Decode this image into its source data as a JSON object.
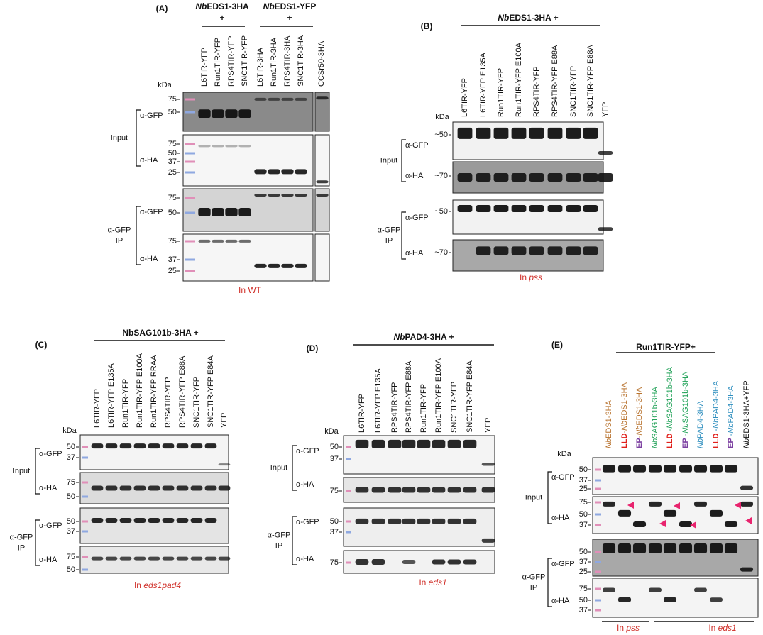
{
  "panels": [
    {
      "label": "(A)",
      "headers": [
        {
          "text": [
            {
              "text": "Nb",
              "italic": true
            },
            {
              "text": "EDS1-3HA"
            }
          ],
          "sub": "+"
        },
        {
          "text": [
            {
              "text": "Nb",
              "italic": true
            },
            {
              "text": "EDS1-YFP"
            }
          ],
          "sub": "+"
        }
      ],
      "lanes": [
        "L6TIR-YFP",
        "Run1TIR-YFP",
        "RPS4TIR-YFP",
        "SNC1TIR-YFP",
        "L6TIR-3HA",
        "Run1TIR-3HA",
        "RPS4TIR-3HA",
        "SNC1TIR-3HA",
        "CCSr50-3HA"
      ],
      "kda": "kDa",
      "blots": [
        {
          "antibody": "α-GFP",
          "markers": [
            "75",
            "50"
          ]
        },
        {
          "antibody": "α-HA",
          "markers": [
            "75",
            "50",
            "37",
            "25"
          ]
        },
        {
          "antibody": "α-GFP",
          "markers": [
            "75",
            "50"
          ]
        },
        {
          "antibody": "α-HA",
          "markers": [
            "75",
            "37",
            "25"
          ]
        }
      ],
      "groups": [
        {
          "lines": [
            "Input"
          ]
        },
        {
          "lines": [
            "α-GFP",
            "IP"
          ]
        }
      ],
      "footers": [
        [
          {
            "text": "In WT"
          }
        ]
      ]
    },
    {
      "label": "(B)",
      "headers": [
        {
          "text": [
            {
              "text": "Nb",
              "italic": true
            },
            {
              "text": "EDS1-3HA +"
            }
          ]
        }
      ],
      "lanes": [
        "L6TIR-YFP",
        "L6TIR-YFP E135A",
        "Run1TIR-YFP",
        "Run1TIR-YFP E100A",
        "RPS4TIR-YFP",
        "RPS4TIR-YFP E88A",
        "SNC1TIR-YFP",
        "SNC1TIR-YFP E88A",
        "YFP"
      ],
      "kda": "kDa",
      "blots": [
        {
          "antibody": "α-GFP",
          "markers": [
            "~50"
          ]
        },
        {
          "antibody": "α-HA",
          "markers": [
            "~70"
          ]
        },
        {
          "antibody": "α-GFP",
          "markers": [
            "~50"
          ]
        },
        {
          "antibody": "α-HA",
          "markers": [
            "~70"
          ]
        }
      ],
      "groups": [
        {
          "lines": [
            "Input"
          ]
        },
        {
          "lines": [
            "α-GFP",
            "IP"
          ]
        }
      ],
      "footers": [
        [
          {
            "text": "In "
          },
          {
            "text": "pss",
            "italic": true
          }
        ]
      ]
    },
    {
      "label": "(C)",
      "headers": [
        {
          "text": [
            {
              "text": "NbSAG101b-3HA +"
            }
          ]
        }
      ],
      "lanes": [
        "L6TIR-YFP",
        "L6TIR-YFP E135A",
        "Run1TIR-YFP",
        "Run1TIR-YFP E100A",
        "Run1TIR-YFP RRAA",
        "RPS4TIR-YFP",
        "RPS4TIR-YFP E88A",
        "SNC1TIR-YFP",
        "SNC1TIR-YFP E84A",
        "YFP"
      ],
      "kda": "kDa",
      "blots": [
        {
          "antibody": "α-GFP",
          "markers": [
            "50",
            "37"
          ]
        },
        {
          "antibody": "α-HA",
          "markers": [
            "75",
            "50"
          ]
        },
        {
          "antibody": "α-GFP",
          "markers": [
            "50",
            "37"
          ]
        },
        {
          "antibody": "α-HA",
          "markers": [
            "75",
            "50"
          ]
        }
      ],
      "groups": [
        {
          "lines": [
            "Input"
          ]
        },
        {
          "lines": [
            "α-GFP",
            "IP"
          ]
        }
      ],
      "footers": [
        [
          {
            "text": "In "
          },
          {
            "text": "eds1pad4",
            "italic": true
          }
        ]
      ]
    },
    {
      "label": "(D)",
      "headers": [
        {
          "text": [
            {
              "text": "Nb",
              "italic": true
            },
            {
              "text": "PAD4-3HA +"
            }
          ]
        }
      ],
      "lanes": [
        "L6TIR-YFP",
        "L6TIR-YFP E135A",
        "RPS4TIR-YFP",
        "RPS4TIR-YFP E88A",
        "Run1TIR-YFP",
        "Run1TIR-YFP E100A",
        "SNC1TIR-YFP",
        "SNC1TIR-YFP E84A",
        "YFP"
      ],
      "kda": "kDa",
      "blots": [
        {
          "antibody": "α-GFP",
          "markers": [
            "50",
            "37"
          ]
        },
        {
          "antibody": "α-HA",
          "markers": [
            "75"
          ]
        },
        {
          "antibody": "α-GFP",
          "markers": [
            "50",
            "37"
          ]
        },
        {
          "antibody": "α-HA",
          "markers": [
            "75"
          ]
        }
      ],
      "groups": [
        {
          "lines": [
            "Input"
          ]
        },
        {
          "lines": [
            "α-GFP",
            "IP"
          ]
        }
      ],
      "footers": [
        [
          {
            "text": "In "
          },
          {
            "text": "eds1",
            "italic": true
          }
        ]
      ]
    },
    {
      "label": "(E)",
      "headers": [
        {
          "text": [
            {
              "text": "Run1TIR-YFP+"
            }
          ]
        }
      ],
      "lanes": [
        [
          {
            "text": "Nb",
            "italic": true,
            "color": "#b8732f"
          },
          {
            "text": "EDS1-3HA",
            "color": "#b8732f"
          }
        ],
        [
          {
            "text": "LLD",
            "bold": true,
            "color": "#e0201b"
          },
          {
            "text": "-",
            "color": "#b8732f"
          },
          {
            "text": "Nb",
            "italic": true,
            "color": "#b8732f"
          },
          {
            "text": "EDS1-3HA",
            "color": "#b8732f"
          }
        ],
        [
          {
            "text": "EP",
            "bold": true,
            "color": "#7b3fa0"
          },
          {
            "text": "-",
            "color": "#b8732f"
          },
          {
            "text": "Nb",
            "italic": true,
            "color": "#b8732f"
          },
          {
            "text": "EDS1-3HA",
            "color": "#b8732f"
          }
        ],
        [
          {
            "text": "Nb",
            "italic": true,
            "color": "#23a35a"
          },
          {
            "text": "SAG101b-3HA",
            "color": "#23a35a"
          }
        ],
        [
          {
            "text": "LLD",
            "bold": true,
            "color": "#e0201b"
          },
          {
            "text": " -",
            "color": "#23a35a"
          },
          {
            "text": "Nb",
            "italic": true,
            "color": "#23a35a"
          },
          {
            "text": "SAG101b-3HA",
            "color": "#23a35a"
          }
        ],
        [
          {
            "text": "EP",
            "bold": true,
            "color": "#7b3fa0"
          },
          {
            "text": " -",
            "color": "#23a35a"
          },
          {
            "text": "Nb",
            "italic": true,
            "color": "#23a35a"
          },
          {
            "text": "SAG101b-3HA",
            "color": "#23a35a"
          }
        ],
        [
          {
            "text": "Nb",
            "italic": true,
            "color": "#2f8fbf"
          },
          {
            "text": "PAD4-3HA",
            "color": "#2f8fbf"
          }
        ],
        [
          {
            "text": "LLD",
            "bold": true,
            "color": "#e0201b"
          },
          {
            "text": " -",
            "color": "#2f8fbf"
          },
          {
            "text": "Nb",
            "italic": true,
            "color": "#2f8fbf"
          },
          {
            "text": "PAD4-3HA",
            "color": "#2f8fbf"
          }
        ],
        [
          {
            "text": "EP",
            "bold": true,
            "color": "#7b3fa0"
          },
          {
            "text": " -",
            "color": "#2f8fbf"
          },
          {
            "text": "Nb",
            "italic": true,
            "color": "#2f8fbf"
          },
          {
            "text": "PAD4-3HA",
            "color": "#2f8fbf"
          }
        ],
        [
          {
            "text": "Nb",
            "italic": true
          },
          {
            "text": "EDS1-3HA+YFP"
          }
        ]
      ],
      "kda": "kDa",
      "blots": [
        {
          "antibody": "α-GFP",
          "markers": [
            "50",
            "37",
            "25"
          ]
        },
        {
          "antibody": "α-HA",
          "markers": [
            "75",
            "50",
            "37"
          ]
        },
        {
          "antibody": "α-GFP",
          "markers": [
            "50",
            "37",
            "25"
          ]
        },
        {
          "antibody": "α-HA",
          "markers": [
            "75",
            "50",
            "37"
          ]
        }
      ],
      "groups": [
        {
          "lines": [
            "Input"
          ]
        },
        {
          "lines": [
            "α-GFP",
            "IP"
          ]
        }
      ],
      "footers": [
        [
          {
            "text": "In "
          },
          {
            "text": "pss",
            "italic": true
          }
        ],
        [
          {
            "text": "In "
          },
          {
            "text": "eds1",
            "italic": true
          }
        ]
      ]
    }
  ]
}
